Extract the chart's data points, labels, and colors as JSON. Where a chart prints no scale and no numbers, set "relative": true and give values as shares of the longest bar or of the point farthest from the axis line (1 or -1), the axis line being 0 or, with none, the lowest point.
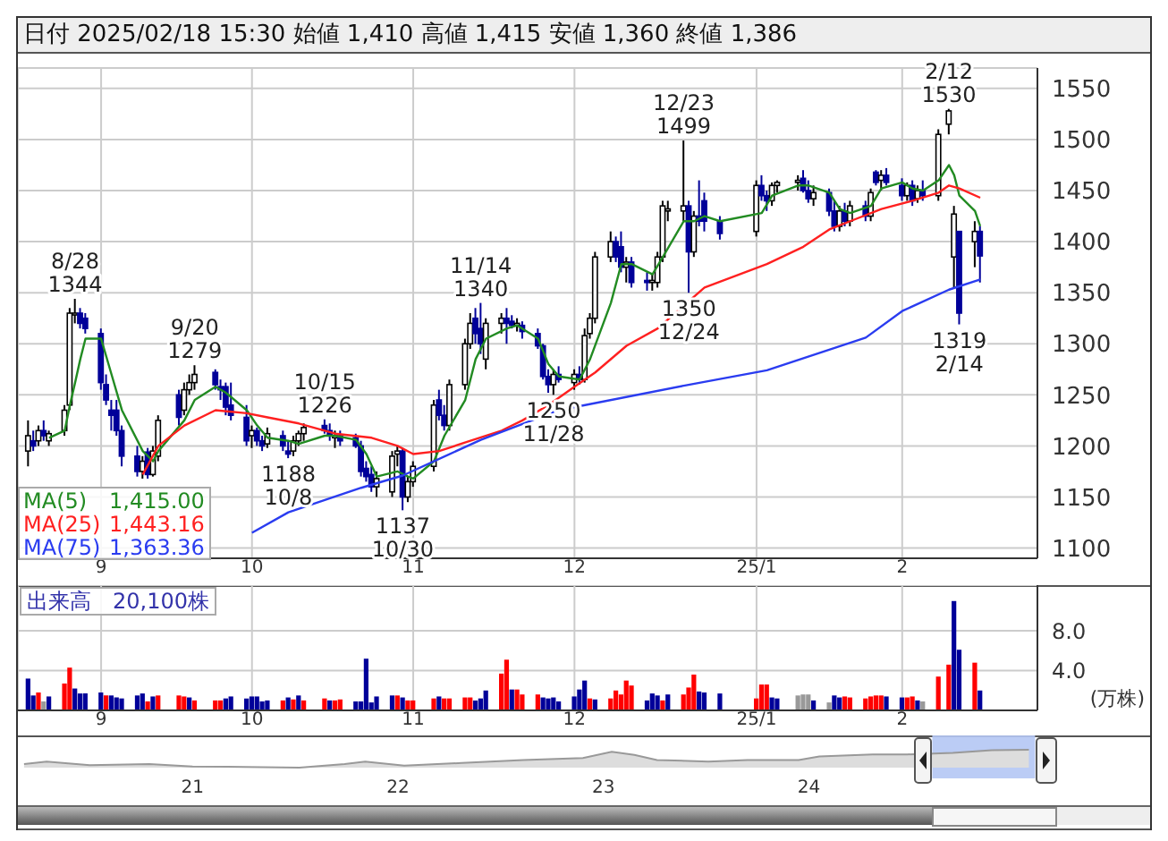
{
  "chart_data": [
    {
      "type": "candlestick",
      "title": "日付 2025/02/18 15:30 始値 1,410 高値 1,415 安値 1,360 終値 1,386",
      "x": [
        "2024-08-19",
        "2024-08-20",
        "2024-08-21",
        "2024-08-22",
        "2024-08-23",
        "2024-08-26",
        "2024-08-27",
        "2024-08-28",
        "2024-08-29",
        "2024-08-30",
        "2024-09-02",
        "2024-09-03",
        "2024-09-04",
        "2024-09-05",
        "2024-09-06",
        "2024-09-09",
        "2024-09-10",
        "2024-09-11",
        "2024-09-12",
        "2024-09-13",
        "2024-09-17",
        "2024-09-18",
        "2024-09-19",
        "2024-09-20",
        "2024-09-24",
        "2024-09-25",
        "2024-09-26",
        "2024-09-27",
        "2024-09-30",
        "2024-10-01",
        "2024-10-02",
        "2024-10-03",
        "2024-10-04",
        "2024-10-07",
        "2024-10-08",
        "2024-10-09",
        "2024-10-10",
        "2024-10-11",
        "2024-10-15",
        "2024-10-16",
        "2024-10-17",
        "2024-10-18",
        "2024-10-21",
        "2024-10-22",
        "2024-10-23",
        "2024-10-24",
        "2024-10-25",
        "2024-10-28",
        "2024-10-29",
        "2024-10-30",
        "2024-10-31",
        "2024-11-01",
        "2024-11-05",
        "2024-11-06",
        "2024-11-07",
        "2024-11-08",
        "2024-11-11",
        "2024-11-12",
        "2024-11-13",
        "2024-11-14",
        "2024-11-15",
        "2024-11-18",
        "2024-11-19",
        "2024-11-20",
        "2024-11-21",
        "2024-11-22",
        "2024-11-25",
        "2024-11-26",
        "2024-11-27",
        "2024-11-28",
        "2024-11-29",
        "2024-12-02",
        "2024-12-03",
        "2024-12-04",
        "2024-12-05",
        "2024-12-06",
        "2024-12-09",
        "2024-12-10",
        "2024-12-11",
        "2024-12-12",
        "2024-12-13",
        "2024-12-16",
        "2024-12-17",
        "2024-12-18",
        "2024-12-19",
        "2024-12-20",
        "2024-12-23",
        "2024-12-24",
        "2024-12-25",
        "2024-12-26",
        "2024-12-27",
        "2024-12-30",
        "2025-01-06",
        "2025-01-07",
        "2025-01-08",
        "2025-01-09",
        "2025-01-10",
        "2025-01-14",
        "2025-01-15",
        "2025-01-16",
        "2025-01-17",
        "2025-01-20",
        "2025-01-21",
        "2025-01-22",
        "2025-01-23",
        "2025-01-24",
        "2025-01-27",
        "2025-01-28",
        "2025-01-29",
        "2025-01-30",
        "2025-01-31",
        "2025-02-03",
        "2025-02-04",
        "2025-02-05",
        "2025-02-06",
        "2025-02-07",
        "2025-02-10",
        "2025-02-12",
        "2025-02-13",
        "2025-02-14",
        "2025-02-17",
        "2025-02-18"
      ],
      "ohlc": [
        [
          1195,
          1225,
          1180,
          1210
        ],
        [
          1205,
          1215,
          1195,
          1200
        ],
        [
          1205,
          1220,
          1200,
          1215
        ],
        [
          1215,
          1225,
          1205,
          1210
        ],
        [
          1205,
          1215,
          1200,
          1212
        ],
        [
          1215,
          1240,
          1210,
          1235
        ],
        [
          1240,
          1335,
          1235,
          1330
        ],
        [
          1330,
          1344,
          1320,
          1330
        ],
        [
          1330,
          1335,
          1315,
          1320
        ],
        [
          1325,
          1330,
          1310,
          1315
        ],
        [
          1310,
          1315,
          1255,
          1262
        ],
        [
          1260,
          1270,
          1240,
          1245
        ],
        [
          1235,
          1245,
          1215,
          1230
        ],
        [
          1235,
          1245,
          1210,
          1215
        ],
        [
          1215,
          1220,
          1180,
          1190
        ],
        [
          1190,
          1200,
          1170,
          1175
        ],
        [
          1175,
          1190,
          1168,
          1185
        ],
        [
          1194,
          1198,
          1168,
          1172
        ],
        [
          1172,
          1200,
          1170,
          1195
        ],
        [
          1190,
          1230,
          1185,
          1225
        ],
        [
          1250,
          1255,
          1220,
          1228
        ],
        [
          1235,
          1262,
          1230,
          1255
        ],
        [
          1255,
          1270,
          1250,
          1262
        ],
        [
          1262,
          1279,
          1255,
          1270
        ],
        [
          1272,
          1275,
          1255,
          1260
        ],
        [
          1258,
          1265,
          1245,
          1255
        ],
        [
          1258,
          1262,
          1230,
          1238
        ],
        [
          1240,
          1262,
          1225,
          1230
        ],
        [
          1228,
          1240,
          1200,
          1205
        ],
        [
          1210,
          1220,
          1198,
          1215
        ],
        [
          1215,
          1218,
          1200,
          1205
        ],
        [
          1205,
          1210,
          1195,
          1200
        ],
        [
          1202,
          1218,
          1198,
          1212
        ],
        [
          1210,
          1215,
          1195,
          1200
        ],
        [
          1195,
          1205,
          1188,
          1192
        ],
        [
          1195,
          1210,
          1190,
          1205
        ],
        [
          1205,
          1215,
          1200,
          1212
        ],
        [
          1212,
          1222,
          1205,
          1218
        ],
        [
          1220,
          1226,
          1212,
          1215
        ],
        [
          1215,
          1222,
          1205,
          1210
        ],
        [
          1208,
          1215,
          1198,
          1210
        ],
        [
          1210,
          1215,
          1200,
          1205
        ],
        [
          1208,
          1212,
          1198,
          1200
        ],
        [
          1200,
          1205,
          1170,
          1175
        ],
        [
          1178,
          1185,
          1165,
          1170
        ],
        [
          1172,
          1180,
          1155,
          1160
        ],
        [
          1160,
          1175,
          1150,
          1168
        ],
        [
          1155,
          1195,
          1150,
          1190
        ],
        [
          1192,
          1200,
          1180,
          1195
        ],
        [
          1195,
          1198,
          1137,
          1150
        ],
        [
          1150,
          1170,
          1145,
          1165
        ],
        [
          1165,
          1185,
          1160,
          1180
        ],
        [
          1180,
          1245,
          1175,
          1240
        ],
        [
          1245,
          1255,
          1225,
          1230
        ],
        [
          1230,
          1240,
          1215,
          1220
        ],
        [
          1220,
          1265,
          1215,
          1260
        ],
        [
          1260,
          1305,
          1255,
          1300
        ],
        [
          1300,
          1330,
          1295,
          1320
        ],
        [
          1325,
          1335,
          1300,
          1310
        ],
        [
          1315,
          1340,
          1290,
          1300
        ],
        [
          1285,
          1325,
          1275,
          1320
        ],
        [
          1320,
          1330,
          1310,
          1325
        ],
        [
          1325,
          1335,
          1300,
          1320
        ],
        [
          1322,
          1328,
          1315,
          1318
        ],
        [
          1318,
          1325,
          1312,
          1320
        ],
        [
          1318,
          1322,
          1305,
          1312
        ],
        [
          1310,
          1315,
          1295,
          1298
        ],
        [
          1298,
          1300,
          1265,
          1268
        ],
        [
          1268,
          1275,
          1252,
          1260
        ],
        [
          1260,
          1275,
          1250,
          1270
        ],
        [
          1270,
          1278,
          1262,
          1265
        ],
        [
          1262,
          1275,
          1255,
          1270
        ],
        [
          1270,
          1278,
          1260,
          1265
        ],
        [
          1265,
          1315,
          1262,
          1308
        ],
        [
          1310,
          1330,
          1305,
          1325
        ],
        [
          1325,
          1390,
          1320,
          1385
        ],
        [
          1385,
          1410,
          1380,
          1400
        ],
        [
          1400,
          1405,
          1380,
          1385
        ],
        [
          1395,
          1410,
          1370,
          1375
        ],
        [
          1375,
          1385,
          1360,
          1380
        ],
        [
          1380,
          1385,
          1355,
          1360
        ],
        [
          1362,
          1370,
          1352,
          1360
        ],
        [
          1360,
          1368,
          1352,
          1362
        ],
        [
          1360,
          1390,
          1355,
          1385
        ],
        [
          1385,
          1440,
          1380,
          1435
        ],
        [
          1430,
          1440,
          1420,
          1432
        ],
        [
          1430,
          1499,
          1420,
          1435
        ],
        [
          1435,
          1440,
          1350,
          1390
        ],
        [
          1390,
          1430,
          1385,
          1425
        ],
        [
          1425,
          1460,
          1415,
          1420
        ],
        [
          1440,
          1448,
          1410,
          1420
        ],
        [
          1420,
          1425,
          1402,
          1408
        ],
        [
          1410,
          1460,
          1405,
          1455
        ],
        [
          1455,
          1465,
          1440,
          1445
        ],
        [
          1445,
          1450,
          1430,
          1440
        ],
        [
          1440,
          1458,
          1435,
          1455
        ],
        [
          1455,
          1460,
          1448,
          1458
        ],
        [
          1458,
          1465,
          1450,
          1460
        ],
        [
          1462,
          1470,
          1448,
          1450
        ],
        [
          1450,
          1460,
          1438,
          1442
        ],
        [
          1442,
          1455,
          1435,
          1448
        ],
        [
          1448,
          1452,
          1425,
          1430
        ],
        [
          1430,
          1440,
          1410,
          1415
        ],
        [
          1415,
          1435,
          1410,
          1430
        ],
        [
          1430,
          1438,
          1415,
          1420
        ],
        [
          1420,
          1440,
          1415,
          1435
        ],
        [
          1435,
          1440,
          1420,
          1425
        ],
        [
          1425,
          1452,
          1420,
          1448
        ],
        [
          1468,
          1470,
          1455,
          1458
        ],
        [
          1460,
          1470,
          1450,
          1465
        ],
        [
          1465,
          1472,
          1455,
          1458
        ],
        [
          1455,
          1462,
          1440,
          1445
        ],
        [
          1445,
          1458,
          1440,
          1455
        ],
        [
          1455,
          1460,
          1435,
          1440
        ],
        [
          1442,
          1455,
          1438,
          1450
        ],
        [
          1450,
          1460,
          1440,
          1445
        ],
        [
          1445,
          1510,
          1440,
          1505
        ],
        [
          1515,
          1530,
          1505,
          1528
        ],
        [
          1385,
          1435,
          1355,
          1427
        ],
        [
          1410,
          1410,
          1319,
          1330
        ],
        [
          1400,
          1420,
          1375,
          1410
        ],
        [
          1410,
          1415,
          1360,
          1386
        ]
      ],
      "series": [
        {
          "type": "line",
          "name": "MA(5)",
          "color": "#228b22",
          "x": [
            "2024-08-23",
            "2024-08-26",
            "2024-08-27",
            "2024-08-28",
            "2024-08-29",
            "2024-08-30",
            "2024-09-02",
            "2024-09-04",
            "2024-09-06",
            "2024-09-10",
            "2024-09-12",
            "2024-09-13",
            "2024-09-18",
            "2024-09-20",
            "2024-09-24",
            "2024-09-26",
            "2024-09-30",
            "2024-10-02",
            "2024-10-04",
            "2024-10-08",
            "2024-10-10",
            "2024-10-15",
            "2024-10-17",
            "2024-10-21",
            "2024-10-23",
            "2024-10-25",
            "2024-10-29",
            "2024-10-31",
            "2024-11-01",
            "2024-11-05",
            "2024-11-07",
            "2024-11-11",
            "2024-11-13",
            "2024-11-15",
            "2024-11-19",
            "2024-11-21",
            "2024-11-25",
            "2024-11-27",
            "2024-11-29",
            "2024-12-03",
            "2024-12-05",
            "2024-12-09",
            "2024-12-11",
            "2024-12-13",
            "2024-12-17",
            "2024-12-19",
            "2024-12-23",
            "2024-12-25",
            "2024-12-27",
            "2024-12-30",
            "2025-01-07",
            "2025-01-09",
            "2025-01-14",
            "2025-01-16",
            "2025-01-20",
            "2025-01-22",
            "2025-01-24",
            "2025-01-28",
            "2025-01-30",
            "2025-02-03",
            "2025-02-05",
            "2025-02-07",
            "2025-02-10",
            "2025-02-12",
            "2025-02-13",
            "2025-02-14",
            "2025-02-17",
            "2025-02-18"
          ],
          "values": [
            1208,
            1215,
            1240,
            1262,
            1285,
            1305,
            1305,
            1270,
            1235,
            1195,
            1185,
            1195,
            1225,
            1245,
            1258,
            1252,
            1235,
            1220,
            1208,
            1205,
            1202,
            1210,
            1210,
            1206,
            1192,
            1170,
            1175,
            1170,
            1168,
            1185,
            1210,
            1245,
            1285,
            1305,
            1315,
            1318,
            1305,
            1280,
            1268,
            1265,
            1285,
            1340,
            1378,
            1378,
            1368,
            1385,
            1420,
            1420,
            1425,
            1420,
            1428,
            1445,
            1455,
            1455,
            1448,
            1432,
            1428,
            1435,
            1452,
            1458,
            1452,
            1450,
            1460,
            1475,
            1465,
            1445,
            1430,
            1415
          ]
        },
        {
          "type": "line",
          "name": "MA(25)",
          "color": "#ff2020",
          "x": [
            "2024-09-10",
            "2024-09-13",
            "2024-09-18",
            "2024-09-24",
            "2024-09-30",
            "2024-10-04",
            "2024-10-10",
            "2024-10-17",
            "2024-10-24",
            "2024-10-29",
            "2024-11-01",
            "2024-11-06",
            "2024-11-12",
            "2024-11-18",
            "2024-11-22",
            "2024-11-27",
            "2024-12-02",
            "2024-12-06",
            "2024-12-12",
            "2024-12-18",
            "2024-12-27",
            "2025-01-08",
            "2025-01-15",
            "2025-01-20",
            "2025-01-24",
            "2025-01-30",
            "2025-02-05",
            "2025-02-10",
            "2025-02-12",
            "2025-02-14",
            "2025-02-18"
          ],
          "values": [
            1172,
            1200,
            1220,
            1235,
            1232,
            1228,
            1222,
            1212,
            1208,
            1200,
            1192,
            1195,
            1205,
            1215,
            1225,
            1240,
            1258,
            1272,
            1298,
            1315,
            1355,
            1378,
            1395,
            1412,
            1420,
            1432,
            1440,
            1448,
            1455,
            1452,
            1443
          ]
        },
        {
          "type": "line",
          "name": "MA(75)",
          "color": "#2a3cf0",
          "x": [
            "2024-10-01",
            "2024-10-08",
            "2024-10-22",
            "2024-10-30",
            "2024-11-14",
            "2024-11-29",
            "2024-12-23",
            "2025-01-08",
            "2025-01-27",
            "2025-02-03",
            "2025-02-12",
            "2025-02-18"
          ],
          "values": [
            1115,
            1135,
            1159,
            1171,
            1206,
            1235,
            1259,
            1274,
            1306,
            1332,
            1353,
            1363
          ]
        }
      ],
      "xlim": [
        "2024-08-17",
        "2025-03-01"
      ],
      "xticks": [
        {
          "value": "2024-09-02",
          "label": "9"
        },
        {
          "value": "2024-10-01",
          "label": "10"
        },
        {
          "value": "2024-11-01",
          "label": "11"
        },
        {
          "value": "2024-12-02",
          "label": "12"
        },
        {
          "value": "2025-01-06",
          "label": "25/1"
        },
        {
          "value": "2025-02-03",
          "label": "2"
        }
      ],
      "ylim": [
        1090,
        1570
      ],
      "yticks": [
        1100,
        1150,
        1200,
        1250,
        1300,
        1350,
        1400,
        1450,
        1500,
        1550
      ],
      "grid": true,
      "legend": "bottom left",
      "annotations": [
        {
          "text": "8/28\n1344",
          "x": "2024-08-28",
          "y": 1344
        },
        {
          "text": "9/20\n1279",
          "x": "2024-09-20",
          "y": 1279
        },
        {
          "text": "10/15\n1226",
          "x": "2024-10-15",
          "y": 1226
        },
        {
          "text": "1188\n10/8",
          "x": "2024-10-08",
          "y": 1188
        },
        {
          "text": "1137\n10/30",
          "x": "2024-10-30",
          "y": 1137
        },
        {
          "text": "11/14\n1340",
          "x": "2024-11-14",
          "y": 1340
        },
        {
          "text": "1250\n11/28",
          "x": "2024-11-28",
          "y": 1250
        },
        {
          "text": "12/23\n1499",
          "x": "2024-12-23",
          "y": 1499
        },
        {
          "text": "1350\n12/24",
          "x": "2024-12-24",
          "y": 1350
        },
        {
          "text": "2/12\n1530",
          "x": "2025-02-12",
          "y": 1530
        },
        {
          "text": "1319\n2/14",
          "x": "2025-02-14",
          "y": 1319
        },
        "1,415.00",
        "1,443.16",
        "1,363.36"
      ]
    },
    {
      "type": "bar",
      "title": "出来高　20,100株",
      "ylabel": "(万株)",
      "x": [
        "2024-08-19",
        "2024-08-20",
        "2024-08-21",
        "2024-08-22",
        "2024-08-23",
        "2024-08-26",
        "2024-08-27",
        "2024-08-28",
        "2024-08-29",
        "2024-08-30",
        "2024-09-02",
        "2024-09-03",
        "2024-09-04",
        "2024-09-05",
        "2024-09-06",
        "2024-09-09",
        "2024-09-10",
        "2024-09-11",
        "2024-09-12",
        "2024-09-13",
        "2024-09-17",
        "2024-09-18",
        "2024-09-19",
        "2024-09-20",
        "2024-09-24",
        "2024-09-25",
        "2024-09-26",
        "2024-09-27",
        "2024-09-30",
        "2024-10-01",
        "2024-10-02",
        "2024-10-03",
        "2024-10-04",
        "2024-10-07",
        "2024-10-08",
        "2024-10-09",
        "2024-10-10",
        "2024-10-11",
        "2024-10-15",
        "2024-10-16",
        "2024-10-17",
        "2024-10-18",
        "2024-10-21",
        "2024-10-22",
        "2024-10-23",
        "2024-10-24",
        "2024-10-25",
        "2024-10-28",
        "2024-10-29",
        "2024-10-30",
        "2024-10-31",
        "2024-11-01",
        "2024-11-05",
        "2024-11-06",
        "2024-11-07",
        "2024-11-08",
        "2024-11-11",
        "2024-11-12",
        "2024-11-13",
        "2024-11-14",
        "2024-11-15",
        "2024-11-18",
        "2024-11-19",
        "2024-11-20",
        "2024-11-21",
        "2024-11-22",
        "2024-11-25",
        "2024-11-26",
        "2024-11-27",
        "2024-11-28",
        "2024-11-29",
        "2024-12-02",
        "2024-12-03",
        "2024-12-04",
        "2024-12-05",
        "2024-12-06",
        "2024-12-09",
        "2024-12-10",
        "2024-12-11",
        "2024-12-12",
        "2024-12-13",
        "2024-12-16",
        "2024-12-17",
        "2024-12-18",
        "2024-12-19",
        "2024-12-20",
        "2024-12-23",
        "2024-12-24",
        "2024-12-25",
        "2024-12-26",
        "2024-12-27",
        "2024-12-30",
        "2025-01-06",
        "2025-01-07",
        "2025-01-08",
        "2025-01-09",
        "2025-01-10",
        "2025-01-14",
        "2025-01-15",
        "2025-01-16",
        "2025-01-17",
        "2025-01-20",
        "2025-01-21",
        "2025-01-22",
        "2025-01-23",
        "2025-01-24",
        "2025-01-27",
        "2025-01-28",
        "2025-01-29",
        "2025-01-30",
        "2025-01-31",
        "2025-02-03",
        "2025-02-04",
        "2025-02-05",
        "2025-02-06",
        "2025-02-07",
        "2025-02-10",
        "2025-02-12",
        "2025-02-13",
        "2025-02-14",
        "2025-02-17",
        "2025-02-18"
      ],
      "values": [
        3.2,
        1.5,
        1.8,
        0.9,
        1.4,
        2.7,
        4.3,
        2.2,
        1.7,
        1.7,
        1.8,
        1.5,
        1.5,
        1.3,
        1.2,
        1.5,
        1.7,
        0.9,
        1.4,
        1.5,
        1.5,
        1.4,
        1.3,
        1.0,
        1.0,
        1.0,
        1.2,
        1.4,
        1.2,
        1.4,
        1.4,
        0.9,
        1.0,
        1.0,
        1.3,
        1.1,
        1.5,
        1.0,
        1.2,
        1.0,
        1.0,
        1.1,
        0.9,
        0.9,
        5.2,
        0.8,
        1.4,
        1.5,
        1.5,
        1.3,
        1.0,
        1.0,
        1.2,
        1.4,
        1.2,
        1.2,
        1.3,
        1.3,
        1.0,
        1.2,
        2.0,
        3.7,
        5.1,
        2.1,
        2.1,
        1.6,
        1.6,
        1.3,
        1.2,
        1.3,
        0.9,
        1.4,
        2.1,
        3.0,
        1.2,
        1.1,
        1.2,
        2.0,
        1.6,
        3.0,
        2.5,
        1.0,
        1.7,
        1.5,
        1.0,
        1.6,
        1.6,
        2.3,
        3.6,
        1.9,
        1.8,
        1.7,
        1.2,
        2.6,
        2.6,
        1.3,
        1.2,
        1.5,
        1.6,
        1.6,
        1.0,
        0.8,
        1.5,
        1.3,
        1.4,
        1.3,
        1.2,
        1.4,
        1.5,
        1.5,
        1.4,
        1.3,
        1.3,
        1.4,
        1.0,
        0.9,
        3.4,
        4.6,
        11.0,
        6.1,
        4.8,
        2.0
      ],
      "colors": [
        "#000099",
        "#000099",
        "#ff0000",
        "#999999",
        "#000099",
        "#ff0000",
        "#ff0000",
        "#000099",
        "#000099",
        "#000099",
        "#000099",
        "#ff0000",
        "#000099",
        "#000099",
        "#000099",
        "#000099",
        "#000099",
        "#ff0000",
        "#000099",
        "#ff0000",
        "#ff0000",
        "#ff0000",
        "#000099",
        "#ff0000",
        "#ff0000",
        "#ff0000",
        "#000099",
        "#000099",
        "#000099",
        "#000099",
        "#000099",
        "#000099",
        "#000099",
        "#ff0000",
        "#000099",
        "#ff0000",
        "#000099",
        "#ff0000",
        "#ff0000",
        "#000099",
        "#ff0000",
        "#ff0000",
        "#000099",
        "#000099",
        "#000099",
        "#000099",
        "#000099",
        "#000099",
        "#ff0000",
        "#000099",
        "#ff0000",
        "#ff0000",
        "#ff0000",
        "#000099",
        "#ff0000",
        "#ff0000",
        "#ff0000",
        "#ff0000",
        "#000099",
        "#000099",
        "#000099",
        "#ff0000",
        "#ff0000",
        "#000099",
        "#ff0000",
        "#ff0000",
        "#ff0000",
        "#000099",
        "#000099",
        "#000099",
        "#000099",
        "#000099",
        "#000099",
        "#000099",
        "#ff0000",
        "#000099",
        "#ff0000",
        "#ff0000",
        "#ff0000",
        "#ff0000",
        "#ff0000",
        "#000099",
        "#000099",
        "#000099",
        "#ff0000",
        "#000099",
        "#ff0000",
        "#ff0000",
        "#ff0000",
        "#000099",
        "#000099",
        "#000099",
        "#ff0000",
        "#ff0000",
        "#ff0000",
        "#000099",
        "#000099",
        "#999999",
        "#999999",
        "#999999",
        "#000099",
        "#999999",
        "#000099",
        "#000099",
        "#ff0000",
        "#ff0000",
        "#ff0000",
        "#ff0000",
        "#ff0000",
        "#ff0000",
        "#000099",
        "#000099",
        "#ff0000",
        "#ff0000",
        "#000099",
        "#999999",
        "#ff0000",
        "#ff0000",
        "#000099",
        "#000099",
        "#ff0000",
        "#000099"
      ],
      "xlim": [
        "2024-08-17",
        "2025-03-01"
      ],
      "xticks": [
        {
          "value": "2024-09-02",
          "label": "9"
        },
        {
          "value": "2024-10-01",
          "label": "10"
        },
        {
          "value": "2024-11-01",
          "label": "11"
        },
        {
          "value": "2024-12-02",
          "label": "12"
        },
        {
          "value": "2025-01-06",
          "label": "25/1"
        },
        {
          "value": "2025-02-03",
          "label": "2"
        }
      ],
      "ylim": [
        0,
        12.6
      ],
      "yticks": [
        {
          "value": 4,
          "label": "4.0"
        },
        {
          "value": 8,
          "label": "8.0"
        }
      ],
      "grid": true
    },
    {
      "type": "area",
      "relative": true,
      "color": "#999999",
      "x": [
        2020.18,
        2020.29,
        2020.5,
        2020.79,
        2021.0,
        2021.34,
        2021.52,
        2021.74,
        2021.84,
        2022.03,
        2022.31,
        2022.61,
        2022.9,
        2023.04,
        2023.15,
        2023.26,
        2023.51,
        2023.7,
        2023.95,
        2024.05,
        2024.31,
        2024.48,
        2024.7,
        2024.89,
        2025.07
      ],
      "values": [
        0.2,
        0.34,
        0.14,
        0.2,
        0.06,
        0.03,
        0,
        0.2,
        0.34,
        0.11,
        0.26,
        0.43,
        0.54,
        0.89,
        0.71,
        0.43,
        0.34,
        0.43,
        0.43,
        0.63,
        0.74,
        0.74,
        0.83,
        0.97,
        1
      ],
      "xlim": [
        2020.15,
        2025.66
      ],
      "xticks": [
        {
          "value": 2021,
          "label": "21"
        },
        {
          "value": 2022,
          "label": "22"
        },
        {
          "value": 2023,
          "label": "23"
        },
        {
          "value": 2024,
          "label": "24"
        }
      ],
      "bands": [
        {
          "axis": "x",
          "from": 2024.6,
          "to": 2025.1,
          "color": "#b4c6f4"
        }
      ],
      "tick_labels": "x"
    }
  ]
}
